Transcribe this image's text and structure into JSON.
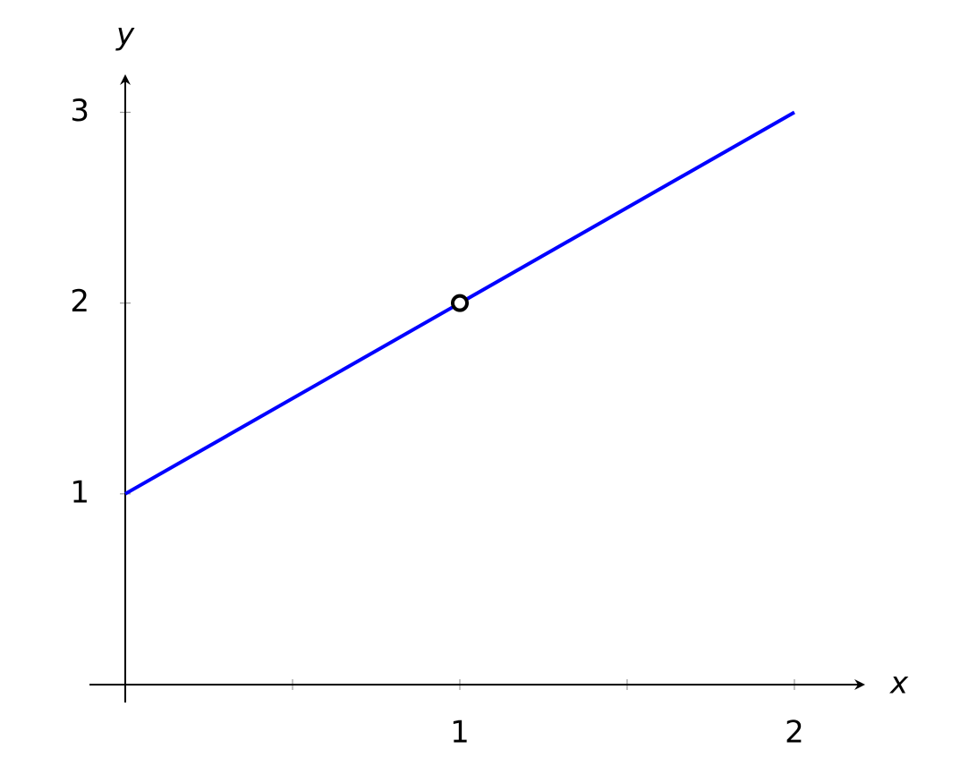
{
  "chart_data": {
    "type": "line",
    "xlabel": "x",
    "ylabel": "y",
    "x": [
      0,
      2
    ],
    "series": [
      {
        "color": "#0000ff",
        "values": [
          1,
          3
        ]
      }
    ],
    "open_circles": {
      "x": [
        1
      ],
      "y": [
        2
      ],
      "color": "#000000"
    },
    "xlim": [
      -0.107,
      2.206
    ],
    "ylim": [
      -0.094,
      3.19
    ],
    "xticks": [
      1,
      2
    ],
    "xminorticks": [
      0.5,
      1.5
    ],
    "yticks": [
      1,
      2,
      3
    ],
    "grid": false
  }
}
